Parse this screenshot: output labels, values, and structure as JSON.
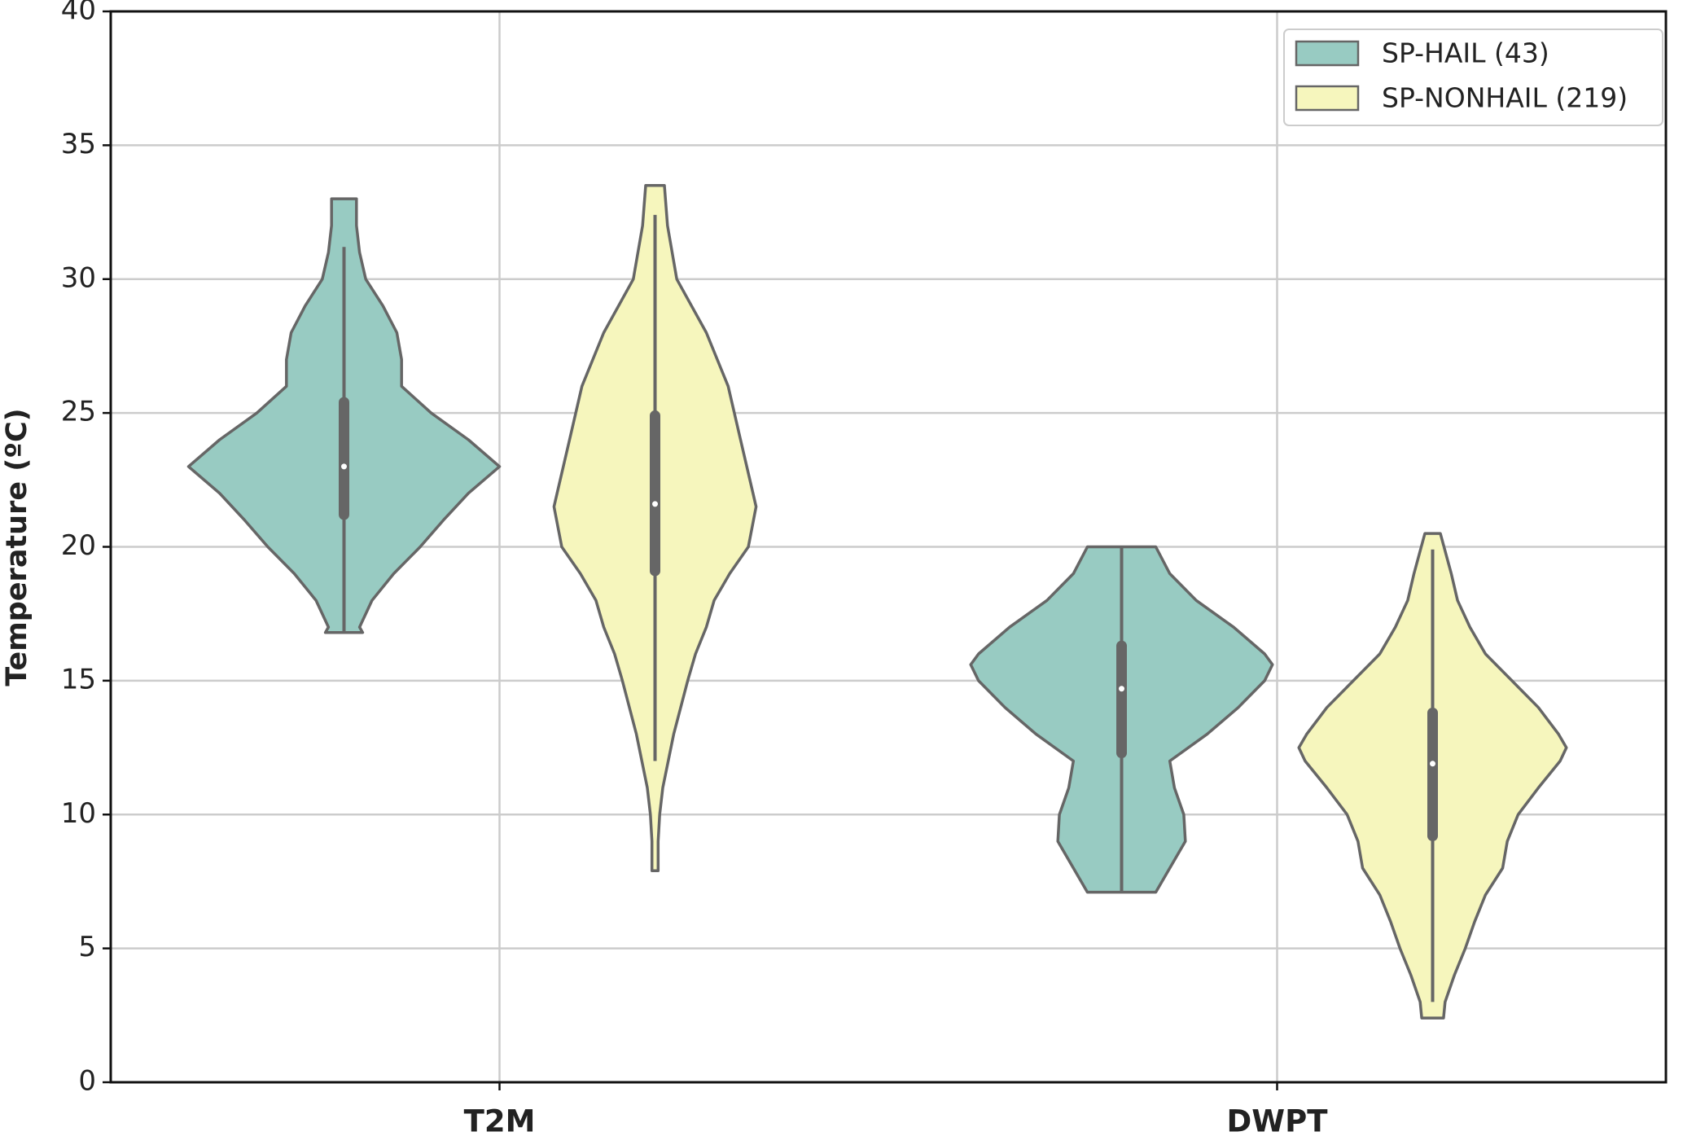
{
  "chart_data": {
    "type": "violin",
    "ylabel": "Temperature (ºC)",
    "categories": [
      "T2M",
      "DWPT"
    ],
    "ylim": [
      0,
      40
    ],
    "yticks": [
      0,
      5,
      10,
      15,
      20,
      25,
      30,
      35,
      40
    ],
    "grid": true,
    "legend": "upper right",
    "box_color": "#666666",
    "series": [
      {
        "name": "SP-HAIL (43)",
        "color": "#98cbc2",
        "violins": [
          {
            "q1": 21.2,
            "median": 23.0,
            "q3": 25.4,
            "whisker_low": 16.8,
            "whisker_high": 31.2,
            "profile": {
              "y": [
                33,
                32,
                31,
                30,
                29,
                28,
                27,
                26,
                25,
                24,
                23,
                22,
                21,
                20,
                19,
                18,
                17,
                16.8
              ],
              "width": [
                0.08,
                0.08,
                0.1,
                0.14,
                0.25,
                0.34,
                0.37,
                0.37,
                0.56,
                0.8,
                1.0,
                0.8,
                0.64,
                0.49,
                0.32,
                0.18,
                0.1,
                0.12
              ]
            }
          },
          {
            "q1": 12.3,
            "median": 14.7,
            "q3": 16.3,
            "whisker_low": 7.1,
            "whisker_high": 20,
            "profile": {
              "y": [
                20,
                19,
                18,
                17,
                16,
                15.6,
                15,
                14,
                13,
                12,
                11,
                10,
                9,
                8,
                7.1
              ],
              "width": [
                0.22,
                0.31,
                0.48,
                0.72,
                0.92,
                0.97,
                0.92,
                0.75,
                0.55,
                0.31,
                0.34,
                0.4,
                0.41,
                0.31,
                0.22
              ]
            }
          }
        ]
      },
      {
        "name": "SP-NONHAIL (219)",
        "color": "#f6f6bd",
        "violins": [
          {
            "q1": 19.1,
            "median": 21.6,
            "q3": 24.9,
            "whisker_low": 12.0,
            "whisker_high": 32.4,
            "profile": {
              "y": [
                33.5,
                32,
                30,
                28,
                26,
                24,
                22,
                21.5,
                20,
                19,
                18,
                17,
                16,
                15,
                13,
                11,
                10,
                9,
                7.9
              ],
              "width": [
                0.06,
                0.08,
                0.14,
                0.33,
                0.47,
                0.55,
                0.63,
                0.65,
                0.6,
                0.48,
                0.38,
                0.33,
                0.26,
                0.21,
                0.12,
                0.05,
                0.03,
                0.02,
                0.02
              ]
            }
          },
          {
            "q1": 9.2,
            "median": 11.9,
            "q3": 13.8,
            "whisker_low": 3.0,
            "whisker_high": 19.9,
            "profile": {
              "y": [
                20.5,
                19,
                18,
                17,
                16,
                15,
                14,
                13,
                12.5,
                12,
                11,
                10,
                9,
                8,
                7,
                6,
                5,
                4,
                3,
                2.4
              ],
              "width": [
                0.05,
                0.12,
                0.16,
                0.24,
                0.34,
                0.51,
                0.68,
                0.81,
                0.86,
                0.82,
                0.68,
                0.55,
                0.48,
                0.45,
                0.34,
                0.27,
                0.21,
                0.14,
                0.08,
                0.07
              ]
            }
          }
        ]
      }
    ]
  }
}
